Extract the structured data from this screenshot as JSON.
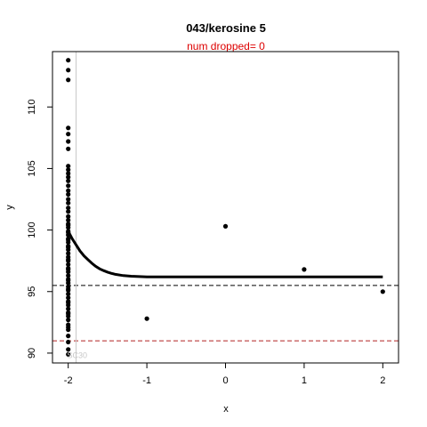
{
  "chart_data": {
    "type": "scatter",
    "title": "043/kerosine 5",
    "subtitle": "num dropped= 0",
    "xlabel": "x",
    "ylabel": "y",
    "xlim": [
      -2.2,
      2.2
    ],
    "ylim": [
      89.2,
      114.5
    ],
    "xticks": [
      -2,
      -1,
      0,
      1,
      2
    ],
    "yticks": [
      90,
      95,
      100,
      105,
      110
    ],
    "grid": false,
    "points": {
      "x": [
        -2,
        -2,
        -2,
        -2,
        -2,
        -2,
        -2,
        -2,
        -2,
        -2,
        -2,
        -2,
        -2,
        -2,
        -2,
        -2,
        -2,
        -2,
        -2,
        -2,
        -2,
        -2,
        -2,
        -2,
        -2,
        -2,
        -2,
        -2,
        -2,
        -2,
        -2,
        -2,
        -2,
        -2,
        -2,
        -2,
        -2,
        -2,
        -2,
        -2,
        -2,
        -2,
        -2,
        -2,
        -2,
        -2,
        -2,
        -2,
        -2,
        -2,
        -2,
        -2,
        -2,
        -2,
        -2,
        -2,
        -2,
        -2,
        -2,
        -2,
        -2,
        -2,
        -2,
        -2,
        -2,
        -1,
        0,
        1,
        2
      ],
      "y": [
        113.8,
        113.0,
        112.2,
        108.3,
        107.8,
        107.2,
        106.6,
        105.2,
        104.9,
        104.6,
        104.3,
        104.0,
        103.6,
        103.2,
        102.9,
        102.5,
        102.2,
        101.8,
        101.5,
        101.1,
        100.8,
        100.5,
        100.2,
        99.9,
        99.6,
        99.3,
        99.0,
        98.7,
        98.4,
        98.1,
        97.8,
        97.5,
        97.2,
        96.9,
        96.6,
        96.3,
        96.0,
        95.7,
        95.4,
        95.1,
        94.8,
        94.5,
        94.2,
        93.9,
        93.6,
        93.3,
        93.0,
        92.7,
        92.3,
        91.9,
        91.4,
        90.9,
        90.3,
        89.9,
        100.4,
        99.8,
        99.2,
        98.6,
        97.6,
        96.8,
        95.9,
        95.2,
        94.1,
        93.2,
        92.1,
        92.8,
        100.3,
        96.8,
        95.0
      ]
    },
    "fit_curve": {
      "x": [
        -2.0,
        -1.95,
        -1.9,
        -1.85,
        -1.8,
        -1.75,
        -1.7,
        -1.65,
        -1.6,
        -1.55,
        -1.5,
        -1.45,
        -1.4,
        -1.3,
        -1.2,
        -1.1,
        -1.0,
        -0.5,
        0,
        0.5,
        1,
        1.5,
        2
      ],
      "y": [
        99.9,
        99.3,
        98.8,
        98.3,
        97.9,
        97.6,
        97.3,
        97.05,
        96.85,
        96.7,
        96.58,
        96.48,
        96.4,
        96.3,
        96.25,
        96.22,
        96.2,
        96.2,
        96.2,
        96.2,
        96.2,
        96.2,
        96.2
      ]
    },
    "reference_lines": [
      {
        "orientation": "horizontal",
        "y": 95.5,
        "style": "dashed",
        "color": "#000000"
      },
      {
        "orientation": "horizontal",
        "y": 91.0,
        "style": "dashed",
        "color": "#b22222"
      },
      {
        "orientation": "vertical",
        "x": -1.9,
        "style": "solid",
        "color": "#c8c8c8"
      }
    ],
    "annotations": [
      {
        "text": "SC30",
        "x": -1.9,
        "y": 89.8,
        "color": "#c8c8c8"
      }
    ]
  }
}
